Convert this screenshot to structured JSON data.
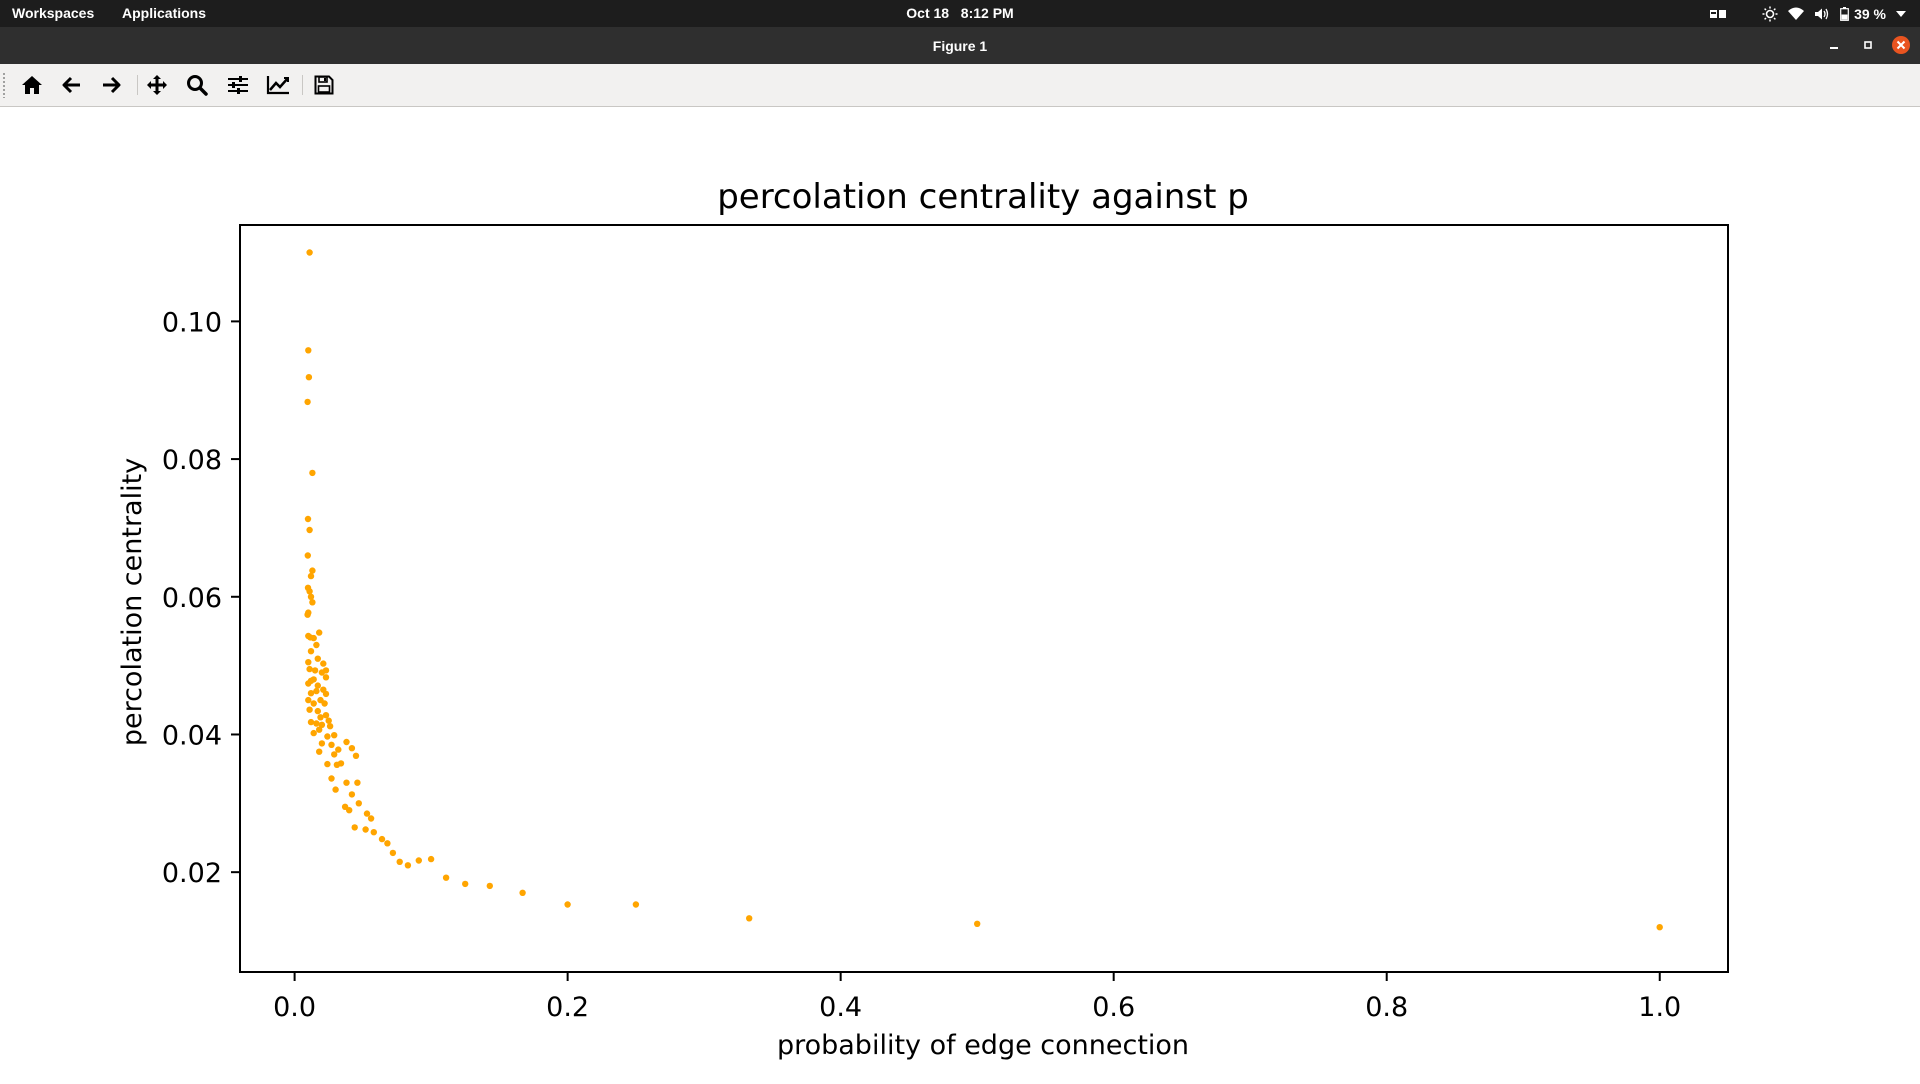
{
  "topbar": {
    "workspaces": "Workspaces",
    "applications": "Applications",
    "date": "Oct 18",
    "time": "8:12 PM",
    "battery": "39 %"
  },
  "window": {
    "title": "Figure 1"
  },
  "toolbar": {
    "buttons": [
      "home-icon",
      "back-icon",
      "forward-icon",
      "pan-icon",
      "zoom-icon",
      "configure-subplots-icon",
      "edit-axis-icon",
      "save-icon"
    ]
  },
  "colors": {
    "points": "#ffa500",
    "close_button": "#e95420"
  },
  "chart_data": {
    "type": "scatter",
    "title": "percolation centrality against p",
    "xlabel": "probability of edge connection",
    "ylabel": "percolation centrality",
    "xlim": [
      -0.04,
      1.05
    ],
    "ylim": [
      0.0055,
      0.114
    ],
    "xticks": [
      0.0,
      0.2,
      0.4,
      0.6,
      0.8,
      1.0
    ],
    "xtick_labels": [
      "0.0",
      "0.2",
      "0.4",
      "0.6",
      "0.8",
      "1.0"
    ],
    "yticks": [
      0.02,
      0.04,
      0.06,
      0.08,
      0.1
    ],
    "ytick_labels": [
      "0.02",
      "0.04",
      "0.06",
      "0.08",
      "0.10"
    ],
    "grid": false,
    "x": [
      0.011,
      0.01,
      0.0105,
      0.0095,
      0.013,
      0.0098,
      0.011,
      0.0097,
      0.013,
      0.012,
      0.0098,
      0.011,
      0.012,
      0.013,
      0.01,
      0.0095,
      0.0115,
      0.01,
      0.018,
      0.014,
      0.016,
      0.012,
      0.01,
      0.017,
      0.021,
      0.023,
      0.015,
      0.011,
      0.02,
      0.023,
      0.014,
      0.012,
      0.01,
      0.017,
      0.021,
      0.023,
      0.016,
      0.012,
      0.01,
      0.019,
      0.014,
      0.022,
      0.011,
      0.017,
      0.023,
      0.019,
      0.025,
      0.012,
      0.016,
      0.02,
      0.026,
      0.018,
      0.014,
      0.029,
      0.038,
      0.024,
      0.02,
      0.027,
      0.042,
      0.032,
      0.018,
      0.029,
      0.045,
      0.034,
      0.024,
      0.031,
      0.027,
      0.046,
      0.038,
      0.03,
      0.042,
      0.047,
      0.037,
      0.053,
      0.056,
      0.04,
      0.044,
      0.052,
      0.058,
      0.064,
      0.068,
      0.072,
      0.077,
      0.083,
      0.091,
      0.1,
      0.111,
      0.125,
      0.143,
      0.167,
      0.2,
      0.25,
      0.333,
      0.5,
      1.0
    ],
    "y": [
      0.11,
      0.0958,
      0.0919,
      0.0883,
      0.078,
      0.0713,
      0.0697,
      0.066,
      0.0638,
      0.063,
      0.0613,
      0.0608,
      0.06,
      0.0592,
      0.0577,
      0.0574,
      0.0541,
      0.0543,
      0.0548,
      0.054,
      0.053,
      0.0521,
      0.0505,
      0.051,
      0.0503,
      0.0493,
      0.0493,
      0.0495,
      0.049,
      0.0483,
      0.048,
      0.0478,
      0.0474,
      0.0471,
      0.0465,
      0.0459,
      0.0463,
      0.046,
      0.045,
      0.045,
      0.0445,
      0.0445,
      0.0436,
      0.0434,
      0.0428,
      0.0425,
      0.042,
      0.0418,
      0.0416,
      0.0414,
      0.0412,
      0.0407,
      0.0402,
      0.0399,
      0.0389,
      0.0397,
      0.0387,
      0.0385,
      0.038,
      0.0378,
      0.0375,
      0.0371,
      0.0369,
      0.0358,
      0.0357,
      0.0356,
      0.0336,
      0.033,
      0.033,
      0.032,
      0.0313,
      0.03,
      0.0295,
      0.0285,
      0.0278,
      0.029,
      0.0265,
      0.0262,
      0.0258,
      0.0248,
      0.0242,
      0.0228,
      0.0215,
      0.021,
      0.0217,
      0.0219,
      0.0192,
      0.0183,
      0.018,
      0.017,
      0.0153,
      0.0153,
      0.0133,
      0.0125,
      0.012
    ]
  }
}
